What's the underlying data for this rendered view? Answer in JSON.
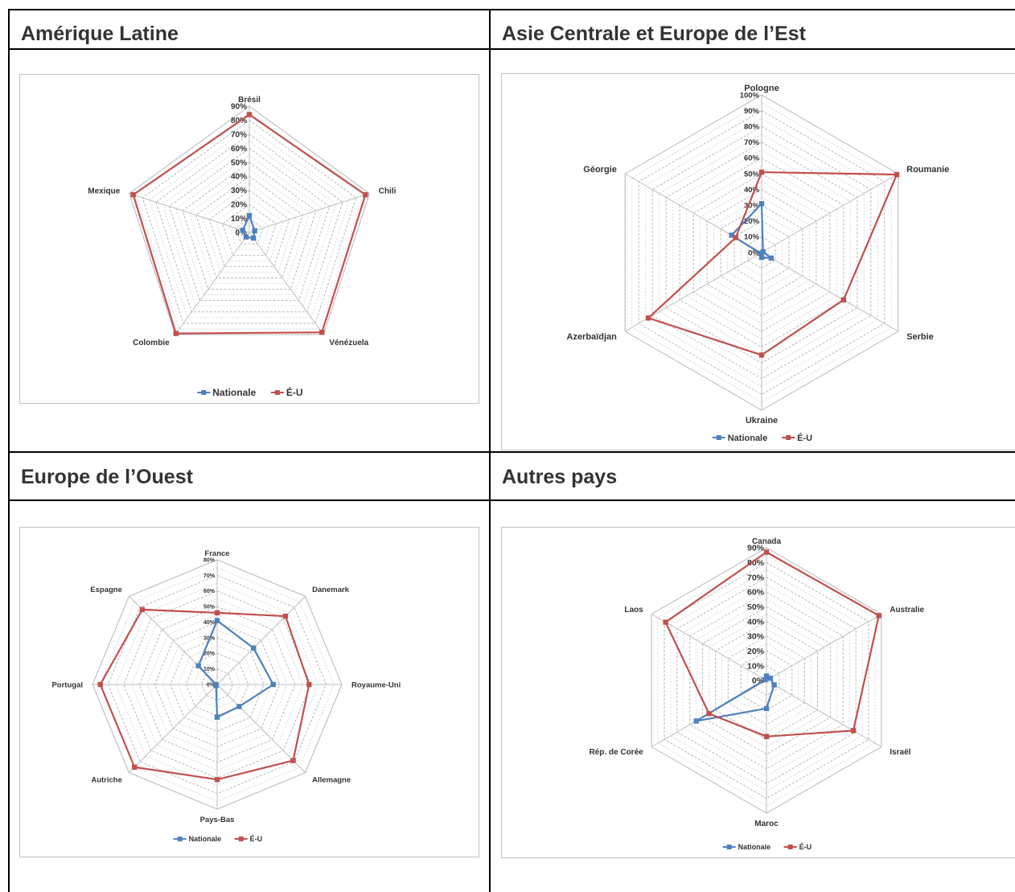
{
  "panels": [
    {
      "title": "Amérique Latine"
    },
    {
      "title": "Asie Centrale et Europe de l’Est"
    },
    {
      "title": "Europe de l’Ouest"
    },
    {
      "title": "Autres pays"
    }
  ],
  "chart_data": [
    {
      "type": "radar",
      "categories": [
        "Brésil",
        "Chili",
        "Vénézuela",
        "Colombie",
        "Mexique"
      ],
      "series": [
        {
          "name": "Nationale",
          "color": "#4f81bd",
          "values": [
            12,
            4,
            5,
            4,
            5
          ]
        },
        {
          "name": "É-U",
          "color": "#c0504d",
          "values": [
            84,
            87,
            88,
            89,
            87
          ]
        }
      ],
      "ylim": [
        0,
        90
      ],
      "ticks": [
        0,
        10,
        20,
        30,
        40,
        50,
        60,
        70,
        80,
        90
      ],
      "tick_labels": [
        "0%",
        "10%",
        "20%",
        "30%",
        "40%",
        "50%",
        "60%",
        "70%",
        "80%",
        "90%"
      ],
      "grid": true,
      "legend": "bottom"
    },
    {
      "type": "radar",
      "categories": [
        "Pologne",
        "Roumanie",
        "Serbie",
        "Ukraine",
        "Azerbaïdjan",
        "Géorgie"
      ],
      "series": [
        {
          "name": "Nationale",
          "color": "#4f81bd",
          "values": [
            31,
            1,
            7,
            3,
            1,
            22
          ]
        },
        {
          "name": "É-U",
          "color": "#c0504d",
          "values": [
            51,
            99,
            60,
            65,
            83,
            19
          ]
        }
      ],
      "ylim": [
        0,
        100
      ],
      "ticks": [
        0,
        10,
        20,
        30,
        40,
        50,
        60,
        70,
        80,
        90,
        100
      ],
      "tick_labels": [
        "0%",
        "10%",
        "20%",
        "30%",
        "40%",
        "50%",
        "60%",
        "70%",
        "80%",
        "90%",
        "100%"
      ],
      "grid": true,
      "legend": "bottom"
    },
    {
      "type": "radar",
      "categories": [
        "France",
        "Danemark",
        "Royaume-Uni",
        "Allemagne",
        "Pays-Bas",
        "Autriche",
        "Portugal",
        "Espagne"
      ],
      "series": [
        {
          "name": "Nationale",
          "color": "#4f81bd",
          "values": [
            41,
            33,
            36,
            20,
            21,
            1,
            1,
            17
          ]
        },
        {
          "name": "É-U",
          "color": "#c0504d",
          "values": [
            46,
            62,
            59,
            69,
            61,
            75,
            75,
            68
          ]
        }
      ],
      "ylim": [
        0,
        80
      ],
      "ticks": [
        0,
        10,
        20,
        30,
        40,
        50,
        60,
        70,
        80
      ],
      "tick_labels": [
        "0%",
        "10%",
        "20%",
        "30%",
        "40%",
        "50%",
        "60%",
        "70%",
        "80%"
      ],
      "grid": true,
      "legend": "bottom"
    },
    {
      "type": "radar",
      "categories": [
        "Canada",
        "Australie",
        "Israël",
        "Maroc",
        "Rép. de Corée",
        "Laos"
      ],
      "series": [
        {
          "name": "Nationale",
          "color": "#4f81bd",
          "values": [
            3,
            3,
            6,
            19,
            55,
            1
          ]
        },
        {
          "name": "É-U",
          "color": "#c0504d",
          "values": [
            87,
            88,
            68,
            38,
            45,
            79
          ]
        }
      ],
      "ylim": [
        0,
        90
      ],
      "ticks": [
        0,
        10,
        20,
        30,
        40,
        50,
        60,
        70,
        80,
        90
      ],
      "tick_labels": [
        "0%",
        "10%",
        "20%",
        "30%",
        "40%",
        "50%",
        "60%",
        "70%",
        "80%",
        "90%"
      ],
      "grid": true,
      "legend": "bottom"
    }
  ]
}
